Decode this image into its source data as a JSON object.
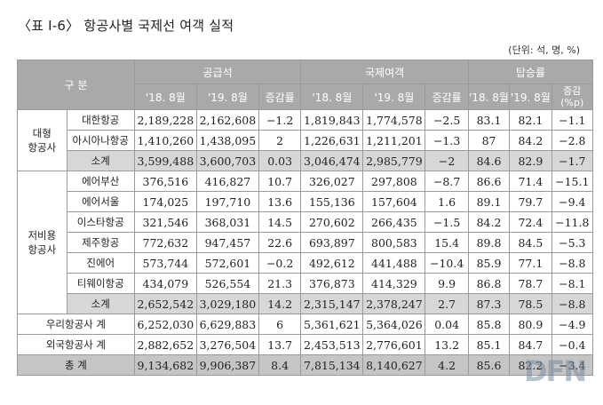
{
  "title": "〈표 Ⅰ-6〉 항공사별 국제선 여객 실적",
  "unit": "(단위: 석, 명, %)",
  "header": {
    "category": "구 분",
    "groups": [
      "공급석",
      "국제여객",
      "탑승률"
    ],
    "sub": [
      "'18. 8월",
      "'19. 8월",
      "증감률",
      "'18. 8월",
      "'19. 8월",
      "증감률",
      "'18. 8월",
      "'19. 8월",
      "증감\n(%p)"
    ]
  },
  "groups": {
    "major": "대형\n항공사",
    "lcc": "저비용\n항공사"
  },
  "rows": {
    "major": [
      {
        "name": "대한항공",
        "v": [
          "2,189,228",
          "2,162,608",
          "-1.2",
          "1,819,843",
          "1,774,578",
          "-2.5",
          "83.1",
          "82.1",
          "-1.1"
        ]
      },
      {
        "name": "아시아나항공",
        "v": [
          "1,410,260",
          "1,438,095",
          "2",
          "1,226,631",
          "1,211,201",
          "-1.3",
          "87",
          "84.2",
          "-2.8"
        ]
      },
      {
        "name": "소계",
        "v": [
          "3,599,488",
          "3,600,703",
          "0.03",
          "3,046,474",
          "2,985,779",
          "-2",
          "84.6",
          "82.9",
          "-1.7"
        ]
      }
    ],
    "lcc": [
      {
        "name": "에어부산",
        "v": [
          "376,516",
          "416,827",
          "10.7",
          "326,027",
          "297,808",
          "-8.7",
          "86.6",
          "71.4",
          "-15.1"
        ]
      },
      {
        "name": "에어서울",
        "v": [
          "174,025",
          "197,710",
          "13.6",
          "155,136",
          "157,604",
          "1.6",
          "89.1",
          "79.7",
          "-9.4"
        ]
      },
      {
        "name": "이스타항공",
        "v": [
          "321,546",
          "368,031",
          "14.5",
          "270,602",
          "266,435",
          "-1.5",
          "84.2",
          "72.4",
          "-11.8"
        ]
      },
      {
        "name": "제주항공",
        "v": [
          "772,632",
          "947,457",
          "22.6",
          "693,897",
          "800,583",
          "15.4",
          "89.8",
          "84.5",
          "-5.3"
        ]
      },
      {
        "name": "진에어",
        "v": [
          "573,744",
          "572,601",
          "-0.2",
          "492,612",
          "441,488",
          "-10.4",
          "85.9",
          "77.1",
          "-8.8"
        ]
      },
      {
        "name": "티웨이항공",
        "v": [
          "434,079",
          "526,554",
          "21.3",
          "376,873",
          "414,329",
          "9.9",
          "86.8",
          "78.7",
          "-8.1"
        ]
      },
      {
        "name": "소계",
        "v": [
          "2,652,542",
          "3,029,180",
          "14.2",
          "2,315,147",
          "2,378,247",
          "2.7",
          "87.3",
          "78.5",
          "-8.8"
        ]
      }
    ],
    "domestic_total": {
      "name": "우리항공사 계",
      "v": [
        "6,252,030",
        "6,629,883",
        "6",
        "5,361,621",
        "5,364,026",
        "0.04",
        "85.8",
        "80.9",
        "-4.9"
      ]
    },
    "foreign_total": {
      "name": "외국항공사 계",
      "v": [
        "2,882,652",
        "3,276,504",
        "13.7",
        "2,453,513",
        "2,776,601",
        "13.2",
        "85.1",
        "84.7",
        "-0.4"
      ]
    },
    "grand_total": {
      "name": "총 계",
      "v": [
        "9,134,682",
        "9,906,387",
        "8.4",
        "7,815,134",
        "8,140,627",
        "4.2",
        "85.6",
        "82.2",
        "-3.4"
      ]
    }
  },
  "watermark": "DFN",
  "colors": {
    "header_bg": "#a9a9a9",
    "subtotal_bg": "#d7d7d7",
    "total_bg": "#c5c5c5",
    "border": "#9a9a9a"
  }
}
